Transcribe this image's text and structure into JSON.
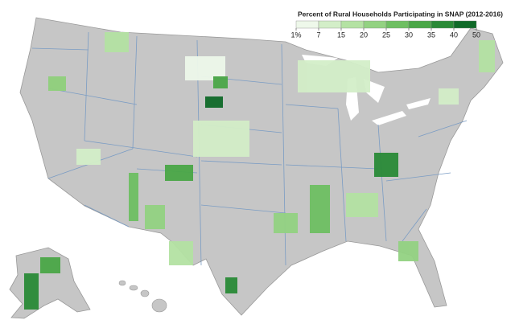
{
  "legend": {
    "title": "Percent of Rural Households Participating in SNAP (2012-2016)",
    "ticks": [
      {
        "value": 1,
        "label": "1%"
      },
      7,
      15,
      20,
      25,
      30,
      35,
      40,
      50
    ],
    "colors": [
      "#eef8ea",
      "#d3eec8",
      "#b4e2a3",
      "#93d282",
      "#6ebf62",
      "#4aa747",
      "#2a8a37",
      "#0f6a28"
    ]
  }
}
